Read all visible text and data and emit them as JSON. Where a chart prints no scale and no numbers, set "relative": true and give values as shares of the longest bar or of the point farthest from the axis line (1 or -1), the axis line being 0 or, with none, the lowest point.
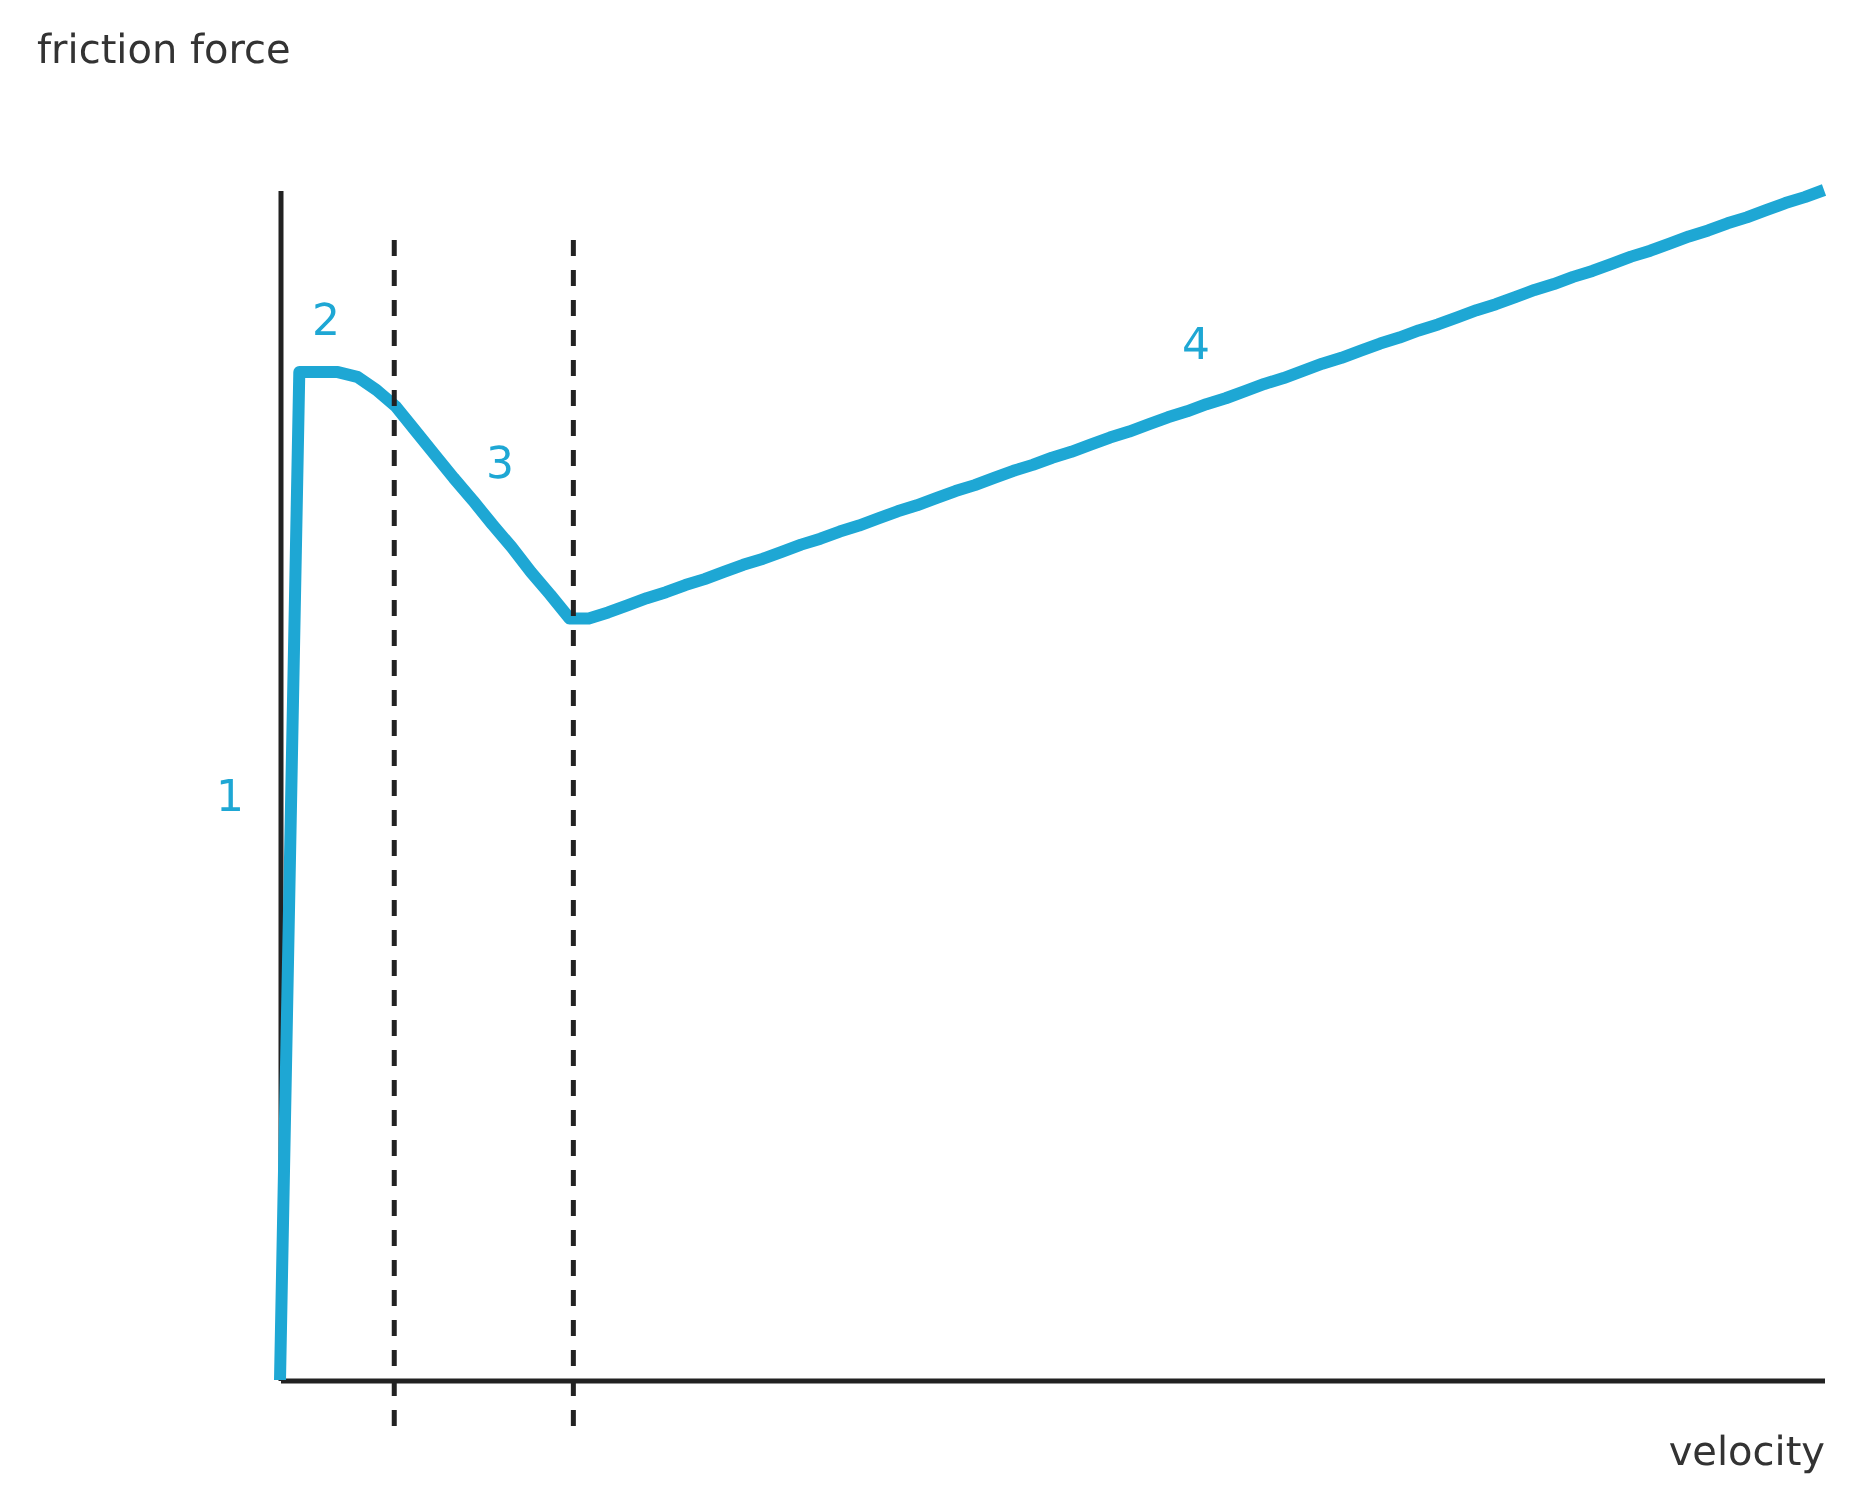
{
  "chart_data": {
    "type": "line",
    "xlabel": "velocity",
    "ylabel": "friction force",
    "relative": true,
    "marker": "none",
    "line_style": "solid",
    "categories": [
      null,
      null,
      null,
      null,
      null,
      null,
      null,
      null,
      null,
      null,
      null,
      null,
      null,
      null,
      null,
      null,
      null,
      null,
      null,
      null,
      null,
      null,
      null,
      null,
      null,
      null,
      null,
      null,
      null,
      null,
      null,
      null,
      null,
      null,
      null,
      null,
      null,
      null,
      null,
      null,
      null,
      null,
      null,
      null,
      null,
      null,
      null,
      null,
      null,
      null,
      null,
      null,
      null,
      null,
      null,
      null,
      null,
      null,
      null,
      null,
      null,
      null,
      null,
      null,
      null,
      null,
      null,
      null,
      null,
      null,
      null,
      null,
      null,
      null,
      null,
      null,
      null,
      null,
      null,
      null,
      null
    ],
    "series": [
      {
        "color": "#1ea7d4",
        "values": [
          0,
          0.847,
          0.847,
          0.847,
          0.843,
          0.832,
          0.818,
          0.798,
          0.778,
          0.758,
          0.739,
          0.719,
          0.7,
          0.679,
          0.66,
          0.64,
          0.64,
          0.645,
          0.651,
          0.657,
          0.662,
          0.668,
          0.673,
          0.679,
          0.685,
          0.69,
          0.696,
          0.702,
          0.707,
          0.713,
          0.718,
          0.724,
          0.73,
          0.735,
          0.741,
          0.747,
          0.752,
          0.758,
          0.764,
          0.769,
          0.775,
          0.78,
          0.786,
          0.792,
          0.797,
          0.803,
          0.809,
          0.814,
          0.82,
          0.825,
          0.831,
          0.837,
          0.842,
          0.848,
          0.854,
          0.859,
          0.865,
          0.871,
          0.876,
          0.882,
          0.887,
          0.893,
          0.899,
          0.904,
          0.91,
          0.916,
          0.921,
          0.927,
          0.932,
          0.938,
          0.944,
          0.949,
          0.955,
          0.961,
          0.966,
          0.972,
          0.977,
          0.983,
          0.989,
          0.994,
          1
        ]
      }
    ],
    "annotations": [
      "1",
      "2",
      "3",
      "4"
    ]
  }
}
